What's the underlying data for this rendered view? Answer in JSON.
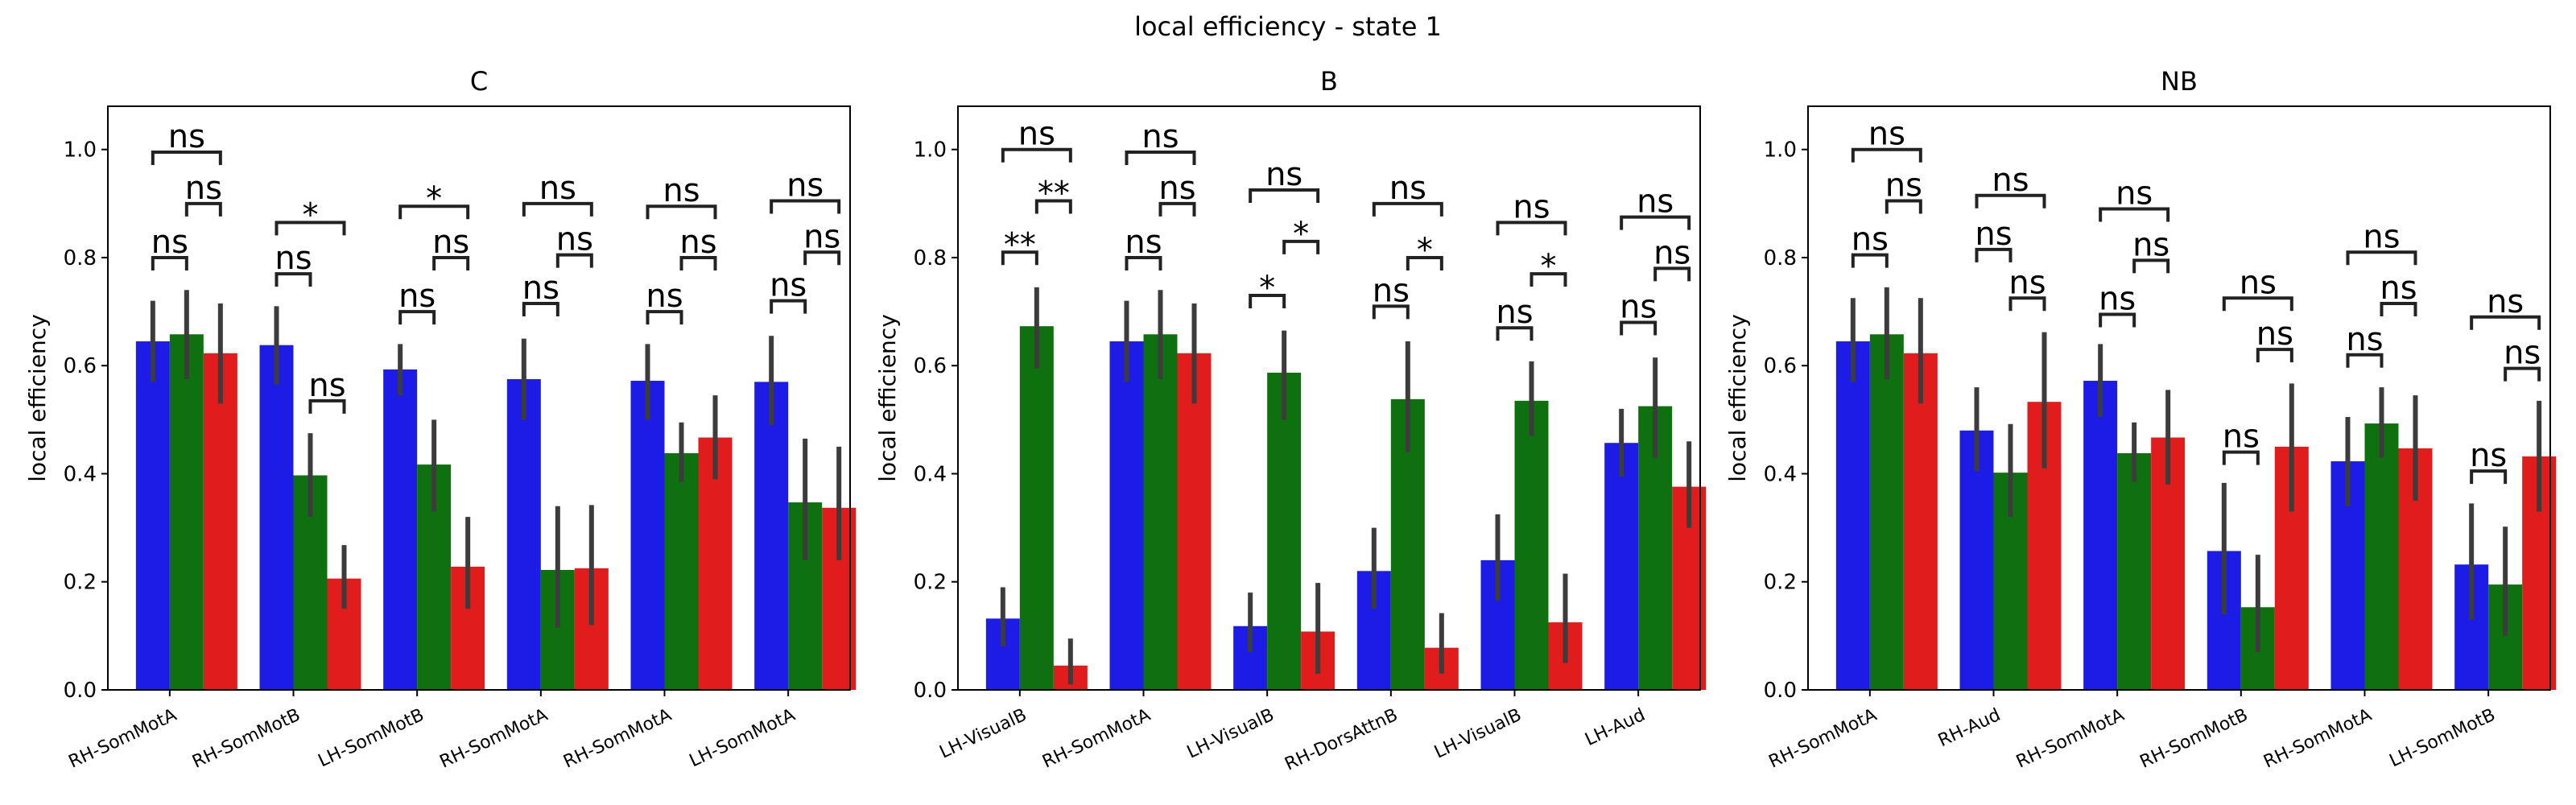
{
  "figure": {
    "suptitle": "local efficiency - state 1"
  },
  "colors": {
    "series": [
      "#1c1ce6",
      "#0f700f",
      "#e01c1c"
    ],
    "error": "#3c3c3c",
    "frame": "#000000"
  },
  "chart_data": [
    {
      "type": "bar",
      "title": "C",
      "ylabel": "local efficiency",
      "ylim": [
        0,
        1.08
      ],
      "yticks": [
        "0.0",
        "0.2",
        "0.4",
        "0.6",
        "0.8",
        "1.0"
      ],
      "categories": [
        "RH-SomMotA",
        "RH-SomMotB",
        "LH-SomMotB",
        "RH-SomMotA",
        "RH-SomMotA",
        "LH-SomMotA"
      ],
      "series": [
        {
          "values": [
            0.645,
            0.638,
            0.593,
            0.575,
            0.572,
            0.57
          ],
          "ci_low": [
            0.57,
            0.565,
            0.545,
            0.5,
            0.5,
            0.49
          ],
          "ci_high": [
            0.72,
            0.71,
            0.64,
            0.65,
            0.64,
            0.655
          ]
        },
        {
          "values": [
            0.658,
            0.397,
            0.417,
            0.222,
            0.438,
            0.347
          ],
          "ci_low": [
            0.575,
            0.32,
            0.33,
            0.115,
            0.385,
            0.24
          ],
          "ci_high": [
            0.74,
            0.475,
            0.5,
            0.34,
            0.495,
            0.465
          ]
        },
        {
          "values": [
            0.623,
            0.206,
            0.228,
            0.225,
            0.467,
            0.337
          ],
          "ci_low": [
            0.53,
            0.15,
            0.15,
            0.12,
            0.39,
            0.24
          ],
          "ci_high": [
            0.715,
            0.268,
            0.32,
            0.342,
            0.545,
            0.45
          ]
        }
      ],
      "annotations": [
        {
          "cat": 0,
          "from": 0,
          "to": 1,
          "level": 0.8,
          "text": "ns"
        },
        {
          "cat": 0,
          "from": 1,
          "to": 2,
          "level": 0.9,
          "text": "ns"
        },
        {
          "cat": 0,
          "from": 0,
          "to": 2,
          "level": 0.995,
          "text": "ns"
        },
        {
          "cat": 1,
          "from": 0,
          "to": 1,
          "level": 0.77,
          "text": "ns"
        },
        {
          "cat": 1,
          "from": 1,
          "to": 2,
          "level": 0.535,
          "text": "ns"
        },
        {
          "cat": 1,
          "from": 0,
          "to": 2,
          "level": 0.865,
          "text": "*"
        },
        {
          "cat": 2,
          "from": 0,
          "to": 1,
          "level": 0.7,
          "text": "ns"
        },
        {
          "cat": 2,
          "from": 1,
          "to": 2,
          "level": 0.8,
          "text": "ns"
        },
        {
          "cat": 2,
          "from": 0,
          "to": 2,
          "level": 0.895,
          "text": "*"
        },
        {
          "cat": 3,
          "from": 0,
          "to": 1,
          "level": 0.715,
          "text": "ns"
        },
        {
          "cat": 3,
          "from": 1,
          "to": 2,
          "level": 0.805,
          "text": "ns"
        },
        {
          "cat": 3,
          "from": 0,
          "to": 2,
          "level": 0.9,
          "text": "ns"
        },
        {
          "cat": 4,
          "from": 0,
          "to": 1,
          "level": 0.7,
          "text": "ns"
        },
        {
          "cat": 4,
          "from": 1,
          "to": 2,
          "level": 0.8,
          "text": "ns"
        },
        {
          "cat": 4,
          "from": 0,
          "to": 2,
          "level": 0.895,
          "text": "ns"
        },
        {
          "cat": 5,
          "from": 0,
          "to": 1,
          "level": 0.72,
          "text": "ns"
        },
        {
          "cat": 5,
          "from": 1,
          "to": 2,
          "level": 0.81,
          "text": "ns"
        },
        {
          "cat": 5,
          "from": 0,
          "to": 2,
          "level": 0.905,
          "text": "ns"
        }
      ]
    },
    {
      "type": "bar",
      "title": "B",
      "ylabel": "local efficiency",
      "ylim": [
        0,
        1.08
      ],
      "yticks": [
        "0.0",
        "0.2",
        "0.4",
        "0.6",
        "0.8",
        "1.0"
      ],
      "categories": [
        "LH-VisualB",
        "RH-SomMotA",
        "LH-VisualB",
        "RH-DorsAttnB",
        "LH-VisualB",
        "LH-Aud"
      ],
      "series": [
        {
          "values": [
            0.132,
            0.645,
            0.118,
            0.22,
            0.24,
            0.457
          ],
          "ci_low": [
            0.08,
            0.57,
            0.07,
            0.15,
            0.165,
            0.395
          ],
          "ci_high": [
            0.19,
            0.72,
            0.18,
            0.3,
            0.325,
            0.52
          ]
        },
        {
          "values": [
            0.673,
            0.658,
            0.587,
            0.538,
            0.535,
            0.525
          ],
          "ci_low": [
            0.595,
            0.575,
            0.5,
            0.44,
            0.47,
            0.43
          ],
          "ci_high": [
            0.745,
            0.74,
            0.665,
            0.645,
            0.608,
            0.615
          ]
        },
        {
          "values": [
            0.045,
            0.623,
            0.108,
            0.078,
            0.125,
            0.376
          ],
          "ci_low": [
            0.01,
            0.53,
            0.03,
            0.03,
            0.05,
            0.3
          ],
          "ci_high": [
            0.095,
            0.715,
            0.198,
            0.142,
            0.215,
            0.46
          ]
        }
      ],
      "annotations": [
        {
          "cat": 0,
          "from": 0,
          "to": 1,
          "level": 0.81,
          "text": "**"
        },
        {
          "cat": 0,
          "from": 1,
          "to": 2,
          "level": 0.905,
          "text": "**"
        },
        {
          "cat": 0,
          "from": 0,
          "to": 2,
          "level": 1.0,
          "text": "ns"
        },
        {
          "cat": 1,
          "from": 0,
          "to": 1,
          "level": 0.8,
          "text": "ns"
        },
        {
          "cat": 1,
          "from": 1,
          "to": 2,
          "level": 0.9,
          "text": "ns"
        },
        {
          "cat": 1,
          "from": 0,
          "to": 2,
          "level": 0.995,
          "text": "ns"
        },
        {
          "cat": 2,
          "from": 0,
          "to": 1,
          "level": 0.73,
          "text": "*"
        },
        {
          "cat": 2,
          "from": 1,
          "to": 2,
          "level": 0.83,
          "text": "*"
        },
        {
          "cat": 2,
          "from": 0,
          "to": 2,
          "level": 0.925,
          "text": "ns"
        },
        {
          "cat": 3,
          "from": 0,
          "to": 1,
          "level": 0.71,
          "text": "ns"
        },
        {
          "cat": 3,
          "from": 1,
          "to": 2,
          "level": 0.8,
          "text": "*"
        },
        {
          "cat": 3,
          "from": 0,
          "to": 2,
          "level": 0.9,
          "text": "ns"
        },
        {
          "cat": 4,
          "from": 0,
          "to": 1,
          "level": 0.67,
          "text": "ns"
        },
        {
          "cat": 4,
          "from": 1,
          "to": 2,
          "level": 0.77,
          "text": "*"
        },
        {
          "cat": 4,
          "from": 0,
          "to": 2,
          "level": 0.865,
          "text": "ns"
        },
        {
          "cat": 5,
          "from": 0,
          "to": 1,
          "level": 0.68,
          "text": "ns"
        },
        {
          "cat": 5,
          "from": 1,
          "to": 2,
          "level": 0.78,
          "text": "ns"
        },
        {
          "cat": 5,
          "from": 0,
          "to": 2,
          "level": 0.875,
          "text": "ns"
        }
      ]
    },
    {
      "type": "bar",
      "title": "NB",
      "ylabel": "local efficiency",
      "ylim": [
        0,
        1.08
      ],
      "yticks": [
        "0.0",
        "0.2",
        "0.4",
        "0.6",
        "0.8",
        "1.0"
      ],
      "categories": [
        "RH-SomMotA",
        "RH-Aud",
        "RH-SomMotA",
        "RH-SomMotB",
        "RH-SomMotA",
        "LH-SomMotB"
      ],
      "series": [
        {
          "values": [
            0.645,
            0.48,
            0.572,
            0.257,
            0.423,
            0.232
          ],
          "ci_low": [
            0.57,
            0.405,
            0.505,
            0.14,
            0.34,
            0.13
          ],
          "ci_high": [
            0.725,
            0.56,
            0.64,
            0.383,
            0.505,
            0.345
          ]
        },
        {
          "values": [
            0.658,
            0.402,
            0.438,
            0.153,
            0.493,
            0.195
          ],
          "ci_low": [
            0.575,
            0.32,
            0.385,
            0.07,
            0.43,
            0.1
          ],
          "ci_high": [
            0.745,
            0.492,
            0.495,
            0.25,
            0.56,
            0.302
          ]
        },
        {
          "values": [
            0.623,
            0.533,
            0.467,
            0.45,
            0.447,
            0.432
          ],
          "ci_low": [
            0.53,
            0.41,
            0.38,
            0.33,
            0.35,
            0.33
          ],
          "ci_high": [
            0.725,
            0.662,
            0.555,
            0.567,
            0.545,
            0.535
          ]
        }
      ],
      "annotations": [
        {
          "cat": 0,
          "from": 0,
          "to": 1,
          "level": 0.805,
          "text": "ns"
        },
        {
          "cat": 0,
          "from": 1,
          "to": 2,
          "level": 0.905,
          "text": "ns"
        },
        {
          "cat": 0,
          "from": 0,
          "to": 2,
          "level": 1.0,
          "text": "ns"
        },
        {
          "cat": 1,
          "from": 0,
          "to": 1,
          "level": 0.815,
          "text": "ns"
        },
        {
          "cat": 1,
          "from": 1,
          "to": 2,
          "level": 0.725,
          "text": "ns"
        },
        {
          "cat": 1,
          "from": 0,
          "to": 2,
          "level": 0.915,
          "text": "ns"
        },
        {
          "cat": 2,
          "from": 0,
          "to": 1,
          "level": 0.695,
          "text": "ns"
        },
        {
          "cat": 2,
          "from": 1,
          "to": 2,
          "level": 0.795,
          "text": "ns"
        },
        {
          "cat": 2,
          "from": 0,
          "to": 2,
          "level": 0.89,
          "text": "ns"
        },
        {
          "cat": 3,
          "from": 0,
          "to": 1,
          "level": 0.44,
          "text": "ns"
        },
        {
          "cat": 3,
          "from": 1,
          "to": 2,
          "level": 0.63,
          "text": "ns"
        },
        {
          "cat": 3,
          "from": 0,
          "to": 2,
          "level": 0.725,
          "text": "ns"
        },
        {
          "cat": 4,
          "from": 0,
          "to": 1,
          "level": 0.62,
          "text": "ns"
        },
        {
          "cat": 4,
          "from": 1,
          "to": 2,
          "level": 0.715,
          "text": "ns"
        },
        {
          "cat": 4,
          "from": 0,
          "to": 2,
          "level": 0.81,
          "text": "ns"
        },
        {
          "cat": 5,
          "from": 0,
          "to": 1,
          "level": 0.405,
          "text": "ns"
        },
        {
          "cat": 5,
          "from": 1,
          "to": 2,
          "level": 0.595,
          "text": "ns"
        },
        {
          "cat": 5,
          "from": 0,
          "to": 2,
          "level": 0.69,
          "text": "ns"
        }
      ]
    }
  ]
}
